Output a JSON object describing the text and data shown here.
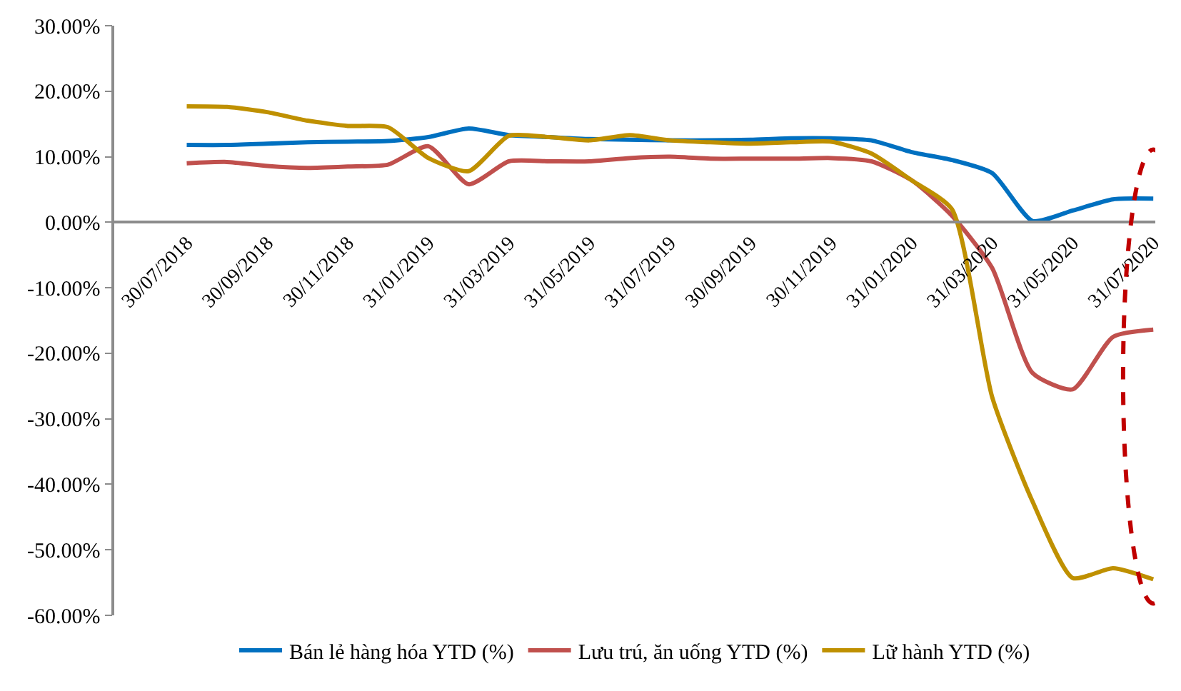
{
  "chart_data": {
    "type": "line",
    "categories": [
      "30/07/2018",
      null,
      "30/09/2018",
      null,
      "30/11/2018",
      null,
      "31/01/2019",
      null,
      "31/03/2019",
      null,
      "31/05/2019",
      null,
      "31/07/2019",
      null,
      "30/09/2019",
      null,
      "30/11/2019",
      null,
      "31/01/2020",
      null,
      "31/03/2020",
      null,
      "31/05/2020",
      null,
      "31/07/2020"
    ],
    "series": [
      {
        "name": "Bán lẻ hàng hóa YTD (%)",
        "color": "#0070c0",
        "values": [
          11.8,
          11.8,
          12.0,
          12.2,
          12.3,
          12.4,
          13.0,
          14.3,
          13.3,
          13.0,
          12.7,
          12.6,
          12.5,
          12.5,
          12.6,
          12.8,
          12.8,
          12.5,
          10.7,
          9.5,
          7.5,
          0.2,
          1.8,
          3.5,
          3.6
        ]
      },
      {
        "name": "Lưu trú, ăn uống YTD (%)",
        "color": "#c0504d",
        "values": [
          9.0,
          9.2,
          8.6,
          8.3,
          8.5,
          8.8,
          11.6,
          5.8,
          9.3,
          9.3,
          9.3,
          9.8,
          10.0,
          9.7,
          9.7,
          9.7,
          9.8,
          9.3,
          6.4,
          1.0,
          -7.0,
          -23.0,
          -25.5,
          -17.5,
          -16.4
        ]
      },
      {
        "name": "Lữ hành YTD (%)",
        "color": "#bf9000",
        "values": [
          17.7,
          17.6,
          16.8,
          15.5,
          14.7,
          14.5,
          9.8,
          7.8,
          13.2,
          13.0,
          12.5,
          13.3,
          12.5,
          12.2,
          12.0,
          12.2,
          12.3,
          10.5,
          6.4,
          2.0,
          -26.7,
          -42.6,
          -54.3,
          -52.8,
          -54.5
        ]
      }
    ],
    "ylim": [
      -60,
      30
    ],
    "yticks": [
      {
        "value": -60,
        "label": "-60.00%"
      },
      {
        "value": -50,
        "label": "-50.00%"
      },
      {
        "value": -40,
        "label": "-40.00%"
      },
      {
        "value": -30,
        "label": "-30.00%"
      },
      {
        "value": -20,
        "label": "-20.00%"
      },
      {
        "value": -10,
        "label": "-10.00%"
      },
      {
        "value": 0,
        "label": "0.00%"
      },
      {
        "value": 10,
        "label": "10.00%"
      },
      {
        "value": 20,
        "label": "20.00%"
      },
      {
        "value": 30,
        "label": "30.00%"
      }
    ],
    "legend": "bottom",
    "marker": "none",
    "line_style": "solid"
  }
}
